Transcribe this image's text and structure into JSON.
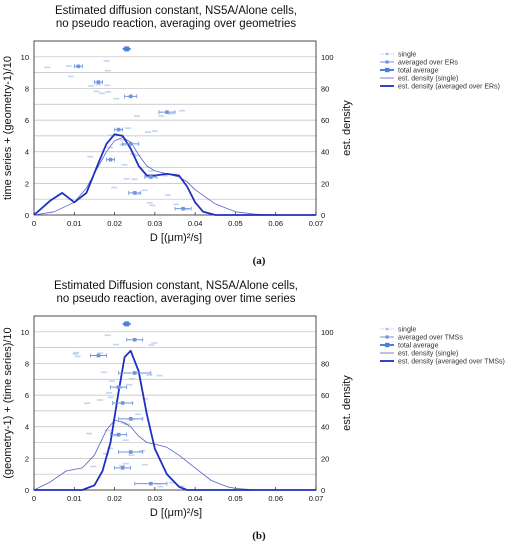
{
  "figure": {
    "panels": [
      {
        "id": "a",
        "title_line1": "Estimated diffusion constant, NS5A/Alone cells,",
        "title_line2": "no pseudo reaction, averaging over geometries",
        "ylabel_left": "time series + (geometry-1)/10",
        "ylabel_right": "est. density",
        "xlabel": "D [(μm)²/s]",
        "caption": "(a)",
        "legend": [
          "single",
          "averaged over ERs",
          "total average",
          "est. density (single)",
          "est. density (averaged over ERs)"
        ]
      },
      {
        "id": "b",
        "title_line1": "Estimated Diffusion constant, NS5A/Alone cells,",
        "title_line2": "no pseudo reaction, averaging over time series",
        "ylabel_left": "(geometry-1) + (time series)/10",
        "ylabel_right": "est. density",
        "xlabel": "D [(μm)²/s]",
        "caption": "(b)",
        "legend": [
          "single",
          "averaged over TMSs",
          "total average",
          "est. density (single)",
          "est. density (averaged over TMSs)"
        ]
      }
    ]
  },
  "colors": {
    "single": "#a9c3ee",
    "averaged": "#6f95dc",
    "total": "#4a7fe0",
    "density_single": "#5a5fc8",
    "density_avg": "#1f2fc0",
    "grid": "#bdbdbd"
  },
  "chart_data": [
    {
      "type": "scatter",
      "title": "Estimated diffusion constant, NS5A/Alone cells, no pseudo reaction, averaging over geometries",
      "xlabel": "D [(μm)²/s]",
      "ylabel": "time series + (geometry-1)/10",
      "y2label": "est. density",
      "xlim": [
        0,
        0.07
      ],
      "ylim": [
        0,
        11
      ],
      "y2lim": [
        0,
        110
      ],
      "xticks": [
        "0",
        "0.01",
        "0.02",
        "0.03",
        "0.04",
        "0.05",
        "0.06",
        "0.07"
      ],
      "yticks": [
        "0",
        "2",
        "4",
        "6",
        "8",
        "10"
      ],
      "y2ticks": [
        "0",
        "20",
        "40",
        "60",
        "80",
        "100"
      ],
      "grid": true,
      "legend_position": "right",
      "series": [
        {
          "name": "averaged over ERs",
          "points": [
            {
              "x": 0.011,
              "y": 9.4,
              "xerr": 0.001
            },
            {
              "x": 0.016,
              "y": 8.4,
              "xerr": 0.001
            },
            {
              "x": 0.024,
              "y": 7.5,
              "xerr": 0.0015
            },
            {
              "x": 0.033,
              "y": 6.5,
              "xerr": 0.002
            },
            {
              "x": 0.021,
              "y": 5.4,
              "xerr": 0.001
            },
            {
              "x": 0.024,
              "y": 4.5,
              "xerr": 0.002
            },
            {
              "x": 0.019,
              "y": 3.5,
              "xerr": 0.001
            },
            {
              "x": 0.029,
              "y": 2.4,
              "xerr": 0.0015
            },
            {
              "x": 0.025,
              "y": 1.4,
              "xerr": 0.0015
            },
            {
              "x": 0.037,
              "y": 0.4,
              "xerr": 0.002
            }
          ]
        },
        {
          "name": "total average",
          "points": [
            {
              "x": 0.023,
              "y": 10.5,
              "xerr": 0.001
            }
          ]
        },
        {
          "name": "est. density (single)",
          "x": [
            0,
            0.005,
            0.01,
            0.013,
            0.016,
            0.018,
            0.02,
            0.022,
            0.024,
            0.026,
            0.028,
            0.03,
            0.033,
            0.036,
            0.038,
            0.04,
            0.045,
            0.05,
            0.055,
            0.06,
            0.07
          ],
          "y": [
            0,
            2,
            8,
            17,
            31,
            40,
            47,
            49,
            46,
            38,
            31,
            28,
            26,
            24,
            21,
            16,
            7,
            2,
            0.5,
            0,
            0
          ]
        },
        {
          "name": "est. density (averaged over ERs)",
          "x": [
            0,
            0.004,
            0.007,
            0.01,
            0.013,
            0.016,
            0.018,
            0.02,
            0.022,
            0.024,
            0.026,
            0.028,
            0.03,
            0.033,
            0.036,
            0.038,
            0.04,
            0.042,
            0.045,
            0.07
          ],
          "y": [
            0,
            9,
            14,
            8,
            14,
            33,
            45,
            51,
            50,
            42,
            31,
            25,
            25,
            26,
            25,
            18,
            8,
            2,
            0,
            0
          ]
        }
      ]
    },
    {
      "type": "scatter",
      "title": "Estimated Diffusion constant, NS5A/Alone cells, no pseudo reaction, averaging over time series",
      "xlabel": "D [(μm)²/s]",
      "ylabel": "(geometry-1) + (time series)/10",
      "y2label": "est. density",
      "xlim": [
        0,
        0.07
      ],
      "ylim": [
        0,
        11
      ],
      "y2lim": [
        0,
        110
      ],
      "xticks": [
        "0",
        "0.01",
        "0.02",
        "0.03",
        "0.04",
        "0.05",
        "0.06",
        "0.07"
      ],
      "yticks": [
        "0",
        "2",
        "4",
        "6",
        "8",
        "10"
      ],
      "y2ticks": [
        "0",
        "20",
        "40",
        "60",
        "80",
        "100"
      ],
      "grid": true,
      "legend_position": "right",
      "series": [
        {
          "name": "averaged over TMSs",
          "points": [
            {
              "x": 0.025,
              "y": 9.5,
              "xerr": 0.002
            },
            {
              "x": 0.016,
              "y": 8.5,
              "xerr": 0.002
            },
            {
              "x": 0.025,
              "y": 7.4,
              "xerr": 0.004
            },
            {
              "x": 0.021,
              "y": 6.5,
              "xerr": 0.002
            },
            {
              "x": 0.022,
              "y": 5.5,
              "xerr": 0.0025
            },
            {
              "x": 0.024,
              "y": 4.5,
              "xerr": 0.003
            },
            {
              "x": 0.021,
              "y": 3.5,
              "xerr": 0.002
            },
            {
              "x": 0.024,
              "y": 2.4,
              "xerr": 0.003
            },
            {
              "x": 0.022,
              "y": 1.4,
              "xerr": 0.002
            },
            {
              "x": 0.029,
              "y": 0.4,
              "xerr": 0.004
            }
          ]
        },
        {
          "name": "total average",
          "points": [
            {
              "x": 0.023,
              "y": 10.5,
              "xerr": 0.001
            }
          ]
        },
        {
          "name": "est. density (single)",
          "x": [
            0,
            0.004,
            0.008,
            0.012,
            0.015,
            0.018,
            0.02,
            0.022,
            0.024,
            0.026,
            0.028,
            0.03,
            0.033,
            0.036,
            0.04,
            0.044,
            0.048,
            0.05,
            0.055,
            0.07
          ],
          "y": [
            0,
            5,
            12,
            14,
            22,
            38,
            44,
            43,
            40,
            34,
            30,
            29,
            27,
            22,
            14,
            6,
            2,
            1,
            0,
            0
          ]
        },
        {
          "name": "est. density (averaged over TMSs)",
          "x": [
            0,
            0.012,
            0.015,
            0.017,
            0.019,
            0.021,
            0.0225,
            0.024,
            0.026,
            0.028,
            0.03,
            0.033,
            0.036,
            0.038,
            0.07
          ],
          "y": [
            0,
            0,
            3,
            12,
            30,
            62,
            84,
            88,
            75,
            48,
            26,
            10,
            2,
            0,
            0
          ]
        }
      ]
    }
  ]
}
